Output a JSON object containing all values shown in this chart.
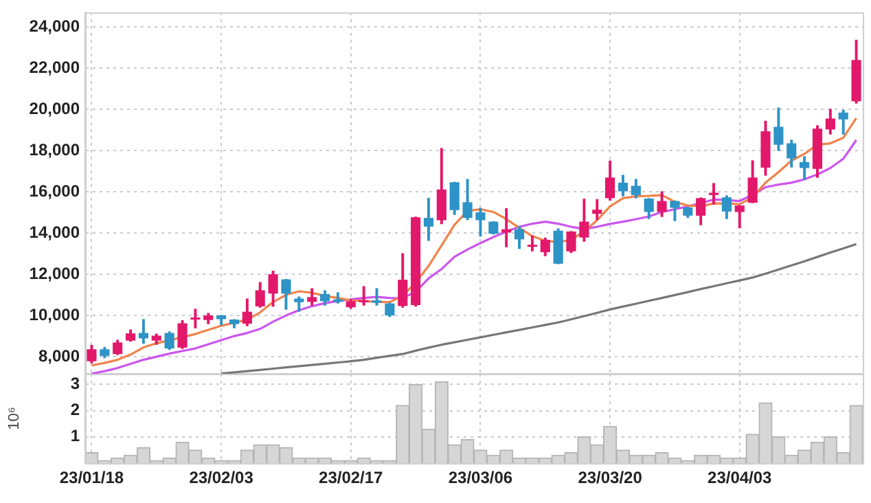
{
  "chart_data": [
    {
      "type": "candlestick",
      "categories": [
        null,
        null,
        null,
        null,
        null,
        null,
        null,
        null,
        null,
        null,
        null,
        null,
        null,
        null,
        null,
        null,
        null,
        null,
        null,
        null,
        null,
        null,
        null,
        null,
        null,
        null,
        null,
        null,
        null,
        null,
        null,
        null,
        null,
        null,
        null,
        null,
        null,
        null,
        null,
        null,
        null,
        null,
        null,
        null,
        null,
        null,
        null,
        null,
        null,
        null,
        null,
        null,
        null,
        null,
        null,
        null,
        null,
        null,
        null,
        null
      ],
      "ohlc": [
        [
          7780,
          8550,
          7700,
          8360
        ],
        [
          8360,
          8450,
          7950,
          8040
        ],
        [
          8130,
          8800,
          8100,
          8690
        ],
        [
          8780,
          9300,
          8750,
          9130
        ],
        [
          9150,
          9800,
          8650,
          8890
        ],
        [
          8780,
          9100,
          8600,
          9020
        ],
        [
          9150,
          9200,
          8350,
          8400
        ],
        [
          8440,
          9750,
          8400,
          9620
        ],
        [
          9800,
          10300,
          9400,
          9850
        ],
        [
          9780,
          10100,
          9600,
          10000
        ],
        [
          10000,
          10000,
          9550,
          9820
        ],
        [
          9800,
          9800,
          9400,
          9580
        ],
        [
          9600,
          10800,
          9500,
          10180
        ],
        [
          10440,
          11600,
          10400,
          11220
        ],
        [
          11060,
          12150,
          10450,
          12000
        ],
        [
          11750,
          11750,
          10300,
          11060
        ],
        [
          10820,
          10900,
          10200,
          10640
        ],
        [
          10660,
          11300,
          10500,
          10890
        ],
        [
          11040,
          11200,
          10500,
          10690
        ],
        [
          10780,
          11100,
          10600,
          10660
        ],
        [
          10400,
          10750,
          10350,
          10690
        ],
        [
          10640,
          11400,
          10500,
          10730
        ],
        [
          10730,
          11300,
          10500,
          10620
        ],
        [
          10580,
          10600,
          9950,
          10000
        ],
        [
          10460,
          13000,
          10400,
          11730
        ],
        [
          10500,
          14770,
          10450,
          14760
        ],
        [
          14730,
          15680,
          13640,
          14310
        ],
        [
          14620,
          18100,
          14450,
          16110
        ],
        [
          16460,
          16460,
          14900,
          15110
        ],
        [
          15490,
          16600,
          14650,
          14730
        ],
        [
          15000,
          15200,
          13850,
          14620
        ],
        [
          14550,
          14550,
          13950,
          13960
        ],
        [
          14020,
          15180,
          13330,
          14180
        ],
        [
          14180,
          14300,
          13250,
          13690
        ],
        [
          13330,
          13850,
          13130,
          13380
        ],
        [
          13070,
          13750,
          12900,
          13670
        ],
        [
          14110,
          14200,
          12510,
          12510
        ],
        [
          13110,
          14070,
          13050,
          14070
        ],
        [
          13780,
          15640,
          13600,
          14550
        ],
        [
          14930,
          15620,
          14650,
          15130
        ],
        [
          15690,
          17490,
          15590,
          16690
        ],
        [
          16440,
          16800,
          15800,
          16020
        ],
        [
          16290,
          16600,
          15700,
          15840
        ],
        [
          15670,
          15670,
          14700,
          15020
        ],
        [
          15020,
          16000,
          14800,
          15550
        ],
        [
          15550,
          15550,
          14600,
          15220
        ],
        [
          15240,
          15240,
          14750,
          14840
        ],
        [
          14840,
          15700,
          14400,
          15690
        ],
        [
          15840,
          16400,
          15400,
          15950
        ],
        [
          15730,
          15800,
          14700,
          15040
        ],
        [
          15020,
          15330,
          14250,
          15330
        ],
        [
          15470,
          17500,
          15470,
          16690
        ],
        [
          17170,
          19420,
          16800,
          18930
        ],
        [
          19150,
          20060,
          18000,
          18280
        ],
        [
          18350,
          18500,
          17200,
          17620
        ],
        [
          17440,
          17700,
          16600,
          17150
        ],
        [
          17110,
          19200,
          16700,
          19060
        ],
        [
          19020,
          20000,
          18800,
          19550
        ],
        [
          19840,
          19950,
          18800,
          19510
        ],
        [
          20390,
          23350,
          20300,
          22390
        ]
      ],
      "colors": [
        "#e2186b",
        "#2e93c6",
        "#e2186b",
        "#e2186b",
        "#2e93c6",
        "#e2186b",
        "#2e93c6",
        "#e2186b",
        "#e2186b",
        "#e2186b",
        "#2e93c6",
        "#2e93c6",
        "#e2186b",
        "#e2186b",
        "#e2186b",
        "#2e93c6",
        "#2e93c6",
        "#e2186b",
        "#2e93c6",
        "#2e93c6",
        "#e2186b",
        "#e2186b",
        "#2e93c6",
        "#2e93c6",
        "#e2186b",
        "#e2186b",
        "#2e93c6",
        "#e2186b",
        "#2e93c6",
        "#2e93c6",
        "#2e93c6",
        "#2e93c6",
        "#e2186b",
        "#2e93c6",
        "#e2186b",
        "#e2186b",
        "#2e93c6",
        "#e2186b",
        "#e2186b",
        "#e2186b",
        "#e2186b",
        "#2e93c6",
        "#2e93c6",
        "#2e93c6",
        "#e2186b",
        "#2e93c6",
        "#2e93c6",
        "#e2186b",
        "#e2186b",
        "#2e93c6",
        "#e2186b",
        "#e2186b",
        "#e2186b",
        "#2e93c6",
        "#2e93c6",
        "#2e93c6",
        "#e2186b",
        "#e2186b",
        "#2e93c6",
        "#e2186b"
      ],
      "series": [
        {
          "type": "line",
          "color": "#f0834a",
          "values": [
            7580,
            7700,
            7850,
            8100,
            8450,
            8650,
            8800,
            8950,
            9100,
            9300,
            9500,
            9650,
            9800,
            10150,
            10650,
            11000,
            11170,
            11100,
            10950,
            10850,
            10730,
            10700,
            10660,
            10650,
            10950,
            11600,
            12400,
            13400,
            14400,
            15070,
            15150,
            15020,
            14670,
            14250,
            13850,
            13620,
            13560,
            13670,
            14070,
            14620,
            15290,
            15690,
            15780,
            15800,
            15840,
            15510,
            15330,
            15290,
            15440,
            15430,
            15400,
            15730,
            16440,
            16950,
            17510,
            17840,
            18280,
            18350,
            18620,
            19570
          ]
        },
        {
          "type": "line",
          "color": "#cc55ee",
          "values": [
            7180,
            7300,
            7450,
            7650,
            7850,
            8000,
            8150,
            8280,
            8400,
            8600,
            8800,
            9000,
            9150,
            9350,
            9700,
            10000,
            10250,
            10450,
            10600,
            10700,
            10780,
            10850,
            10900,
            10850,
            10840,
            11150,
            11800,
            12250,
            12850,
            13200,
            13510,
            13800,
            14070,
            14300,
            14450,
            14550,
            14450,
            14300,
            14200,
            14300,
            14440,
            14550,
            14670,
            14800,
            15020,
            15150,
            15290,
            15450,
            15620,
            15600,
            15550,
            15850,
            16220,
            16350,
            16440,
            16600,
            16840,
            17150,
            17600,
            18510
          ]
        },
        {
          "type": "line",
          "color": "#777777",
          "values": [
            null,
            null,
            null,
            null,
            null,
            null,
            null,
            null,
            null,
            null,
            7180,
            7240,
            7300,
            7360,
            7420,
            7480,
            7540,
            7600,
            7660,
            7720,
            7780,
            7850,
            7950,
            8040,
            8130,
            8290,
            8440,
            8580,
            8700,
            8820,
            8940,
            9060,
            9180,
            9300,
            9420,
            9540,
            9660,
            9810,
            9970,
            10130,
            10290,
            10430,
            10570,
            10710,
            10850,
            10990,
            11130,
            11280,
            11420,
            11560,
            11700,
            11840,
            12030,
            12230,
            12430,
            12630,
            12840,
            13050,
            13250,
            13460
          ]
        }
      ],
      "ylim": [
        7170,
        24700
      ],
      "yticks": [
        {
          "value": 8000,
          "label": "8,000"
        },
        {
          "value": 10000,
          "label": "10,000"
        },
        {
          "value": 12000,
          "label": "12,000"
        },
        {
          "value": 14000,
          "label": "14,000"
        },
        {
          "value": 16000,
          "label": "16,000"
        },
        {
          "value": 18000,
          "label": "18,000"
        },
        {
          "value": 20000,
          "label": "20,000"
        },
        {
          "value": 22000,
          "label": "22,000"
        },
        {
          "value": 24000,
          "label": "24,000"
        }
      ],
      "grid": true,
      "tick_labels": "y"
    },
    {
      "type": "bar",
      "categories": [
        "23/01/18",
        null,
        null,
        null,
        null,
        null,
        null,
        null,
        null,
        null,
        "23/02/03",
        null,
        null,
        null,
        null,
        null,
        null,
        null,
        null,
        null,
        "23/02/17",
        null,
        null,
        null,
        null,
        null,
        null,
        null,
        null,
        null,
        "23/03/06",
        null,
        null,
        null,
        null,
        null,
        null,
        null,
        null,
        null,
        "23/03/20",
        null,
        null,
        null,
        null,
        null,
        null,
        null,
        null,
        null,
        "23/04/03",
        null,
        null,
        null,
        null,
        null,
        null,
        null,
        null,
        null
      ],
      "values": [
        0.4,
        0.1,
        0.2,
        0.3,
        0.6,
        0.1,
        0.2,
        0.8,
        0.5,
        0.2,
        0.1,
        0.1,
        0.5,
        0.7,
        0.7,
        0.6,
        0.2,
        0.2,
        0.2,
        0.1,
        0.1,
        0.2,
        0.1,
        0.1,
        2.2,
        3.0,
        1.3,
        3.1,
        0.7,
        0.9,
        0.5,
        0.3,
        0.5,
        0.2,
        0.2,
        0.2,
        0.3,
        0.4,
        1.0,
        0.7,
        1.4,
        0.5,
        0.3,
        0.3,
        0.4,
        0.2,
        0.1,
        0.3,
        0.3,
        0.2,
        0.2,
        1.1,
        2.3,
        1.0,
        0.3,
        0.5,
        0.8,
        1.0,
        0.4,
        2.2
      ],
      "color": "#d6d6d6",
      "ylim": [
        0,
        3.4
      ],
      "yticks": [
        1,
        2,
        3
      ],
      "ylabel": "10⁶",
      "grid": true
    }
  ]
}
